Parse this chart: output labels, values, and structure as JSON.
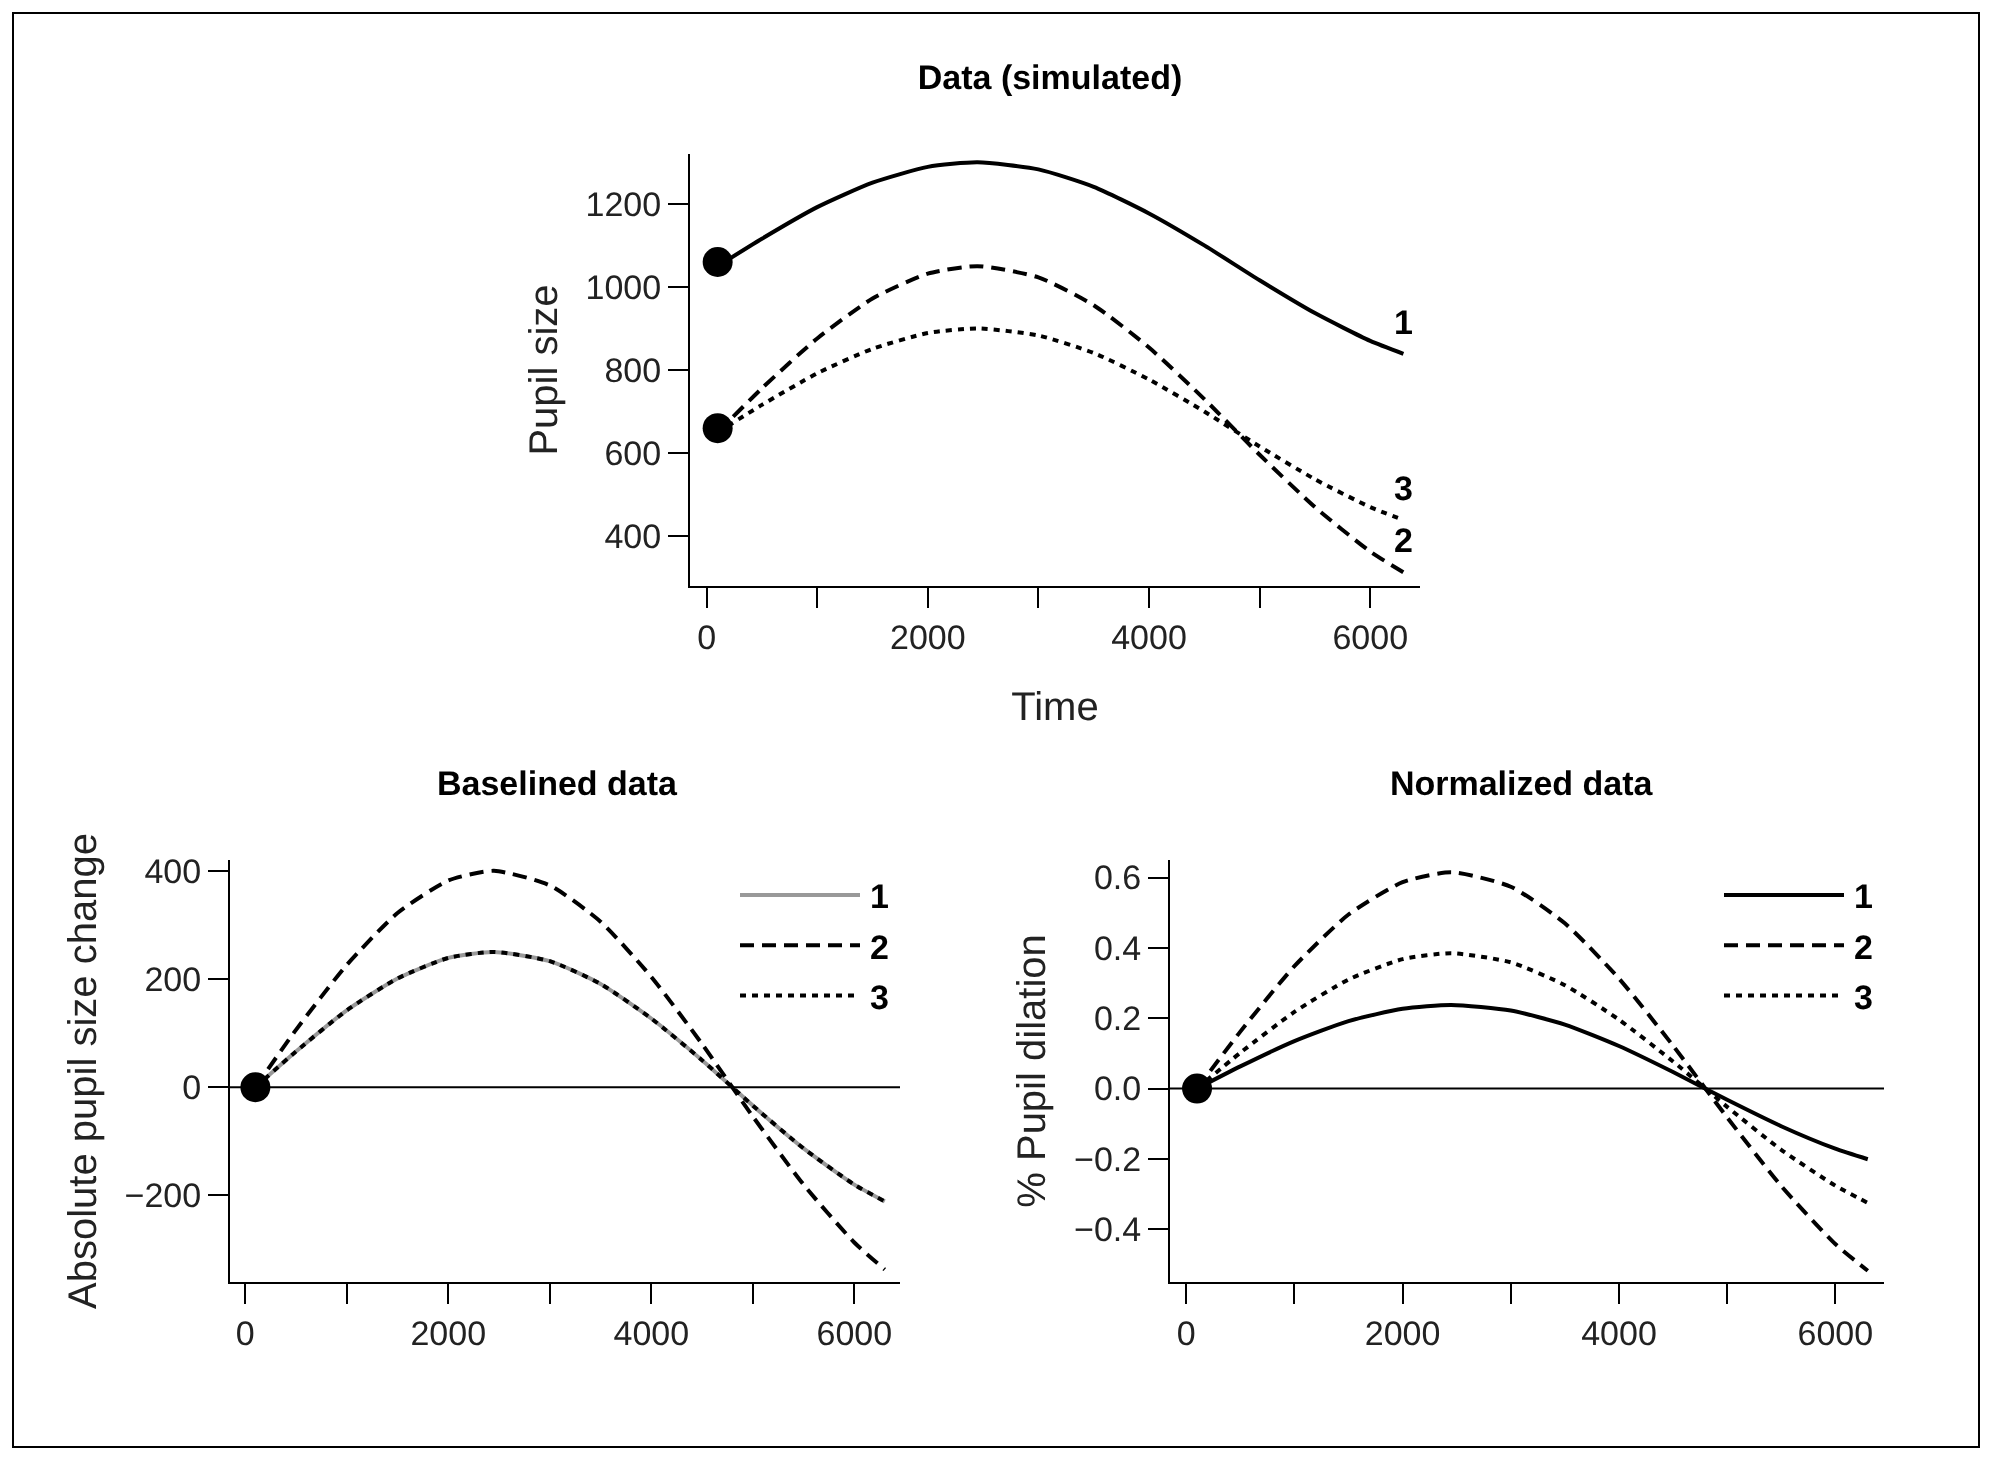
{
  "chart_data": [
    {
      "type": "line",
      "title": "Data (simulated)",
      "xlabel": "Time",
      "ylabel": "Pupil size",
      "x": [
        100,
        500,
        1000,
        1500,
        2000,
        2450,
        3000,
        3500,
        4000,
        4500,
        5000,
        5500,
        6000,
        6300
      ],
      "xlim": [
        -150,
        6450
      ],
      "ylim": [
        280,
        1320
      ],
      "xticks": [
        0,
        {
          "value": 1000,
          "label": null
        },
        2000,
        {
          "value": 3000,
          "label": null
        },
        4000,
        {
          "value": 5000,
          "label": null
        },
        6000
      ],
      "yticks": [
        400,
        600,
        800,
        1000,
        1200
      ],
      "grid": false,
      "legend": false,
      "series": [
        {
          "name": "1",
          "color": "#000000",
          "line_style": "solid",
          "values": [
            1050,
            1116,
            1192,
            1251,
            1289,
            1300,
            1283,
            1241,
            1177,
            1100,
            1016,
            937,
            870,
            839
          ]
        },
        {
          "name": "2",
          "color": "#000000",
          "line_style": "dashed",
          "values": [
            650,
            756,
            876,
            972,
            1032,
            1050,
            1023,
            956,
            854,
            730,
            596,
            470,
            363,
            313
          ]
        },
        {
          "name": "3",
          "color": "#000000",
          "line_style": "dotted",
          "values": [
            650,
            716,
            792,
            851,
            889,
            900,
            883,
            841,
            777,
            700,
            616,
            537,
            470,
            439
          ]
        },
        {
          "type": "scatter",
          "color": "#000000",
          "marker": "circle",
          "values": [
            1060,
            null,
            null,
            null,
            null,
            null,
            null,
            null,
            null,
            null,
            null,
            null,
            null,
            null
          ]
        },
        {
          "type": "scatter",
          "color": "#000000",
          "marker": "circle",
          "values": [
            660,
            null,
            null,
            null,
            null,
            null,
            null,
            null,
            null,
            null,
            null,
            null,
            null,
            null
          ]
        }
      ]
    },
    {
      "type": "line",
      "title": "Baselined data",
      "ylabel": "Absolute pupil size change",
      "x": [
        100,
        500,
        1000,
        1500,
        2000,
        2450,
        3000,
        3500,
        4000,
        4500,
        5000,
        5500,
        6000,
        6300
      ],
      "xlim": [
        -150,
        6450
      ],
      "ylim": [
        -360,
        420
      ],
      "xticks": [
        0,
        {
          "value": 1000,
          "label": null
        },
        2000,
        {
          "value": 3000,
          "label": null
        },
        4000,
        {
          "value": 5000,
          "label": null
        },
        6000
      ],
      "yticks": [
        {
          "value": -200,
          "label": "−200"
        },
        0,
        200,
        400
      ],
      "grid": false,
      "legend": "top right",
      "ref_lines": [
        {
          "axis": "y",
          "value": 0,
          "color": "#000000"
        }
      ],
      "series": [
        {
          "name": "1",
          "color": "#999999",
          "line_style": "solid",
          "values": [
            0,
            66,
            142,
            201,
            239,
            250,
            233,
            191,
            127,
            50,
            -34,
            -113,
            -180,
            -211
          ]
        },
        {
          "name": "2",
          "color": "#000000",
          "line_style": "dashed",
          "values": [
            0,
            106,
            226,
            322,
            382,
            400,
            373,
            306,
            204,
            80,
            -54,
            -180,
            -287,
            -337
          ]
        },
        {
          "name": "3",
          "color": "#000000",
          "line_style": "dotted",
          "values": [
            0,
            66,
            142,
            201,
            239,
            250,
            233,
            191,
            127,
            50,
            -34,
            -113,
            -180,
            -211
          ]
        },
        {
          "type": "scatter",
          "color": "#000000",
          "marker": "circle",
          "values": [
            0,
            null,
            null,
            null,
            null,
            null,
            null,
            null,
            null,
            null,
            null,
            null,
            null,
            null
          ]
        }
      ]
    },
    {
      "type": "line",
      "title": "Normalized data",
      "ylabel": "% Pupil dilation",
      "x": [
        100,
        500,
        1000,
        1500,
        2000,
        2450,
        3000,
        3500,
        4000,
        4500,
        5000,
        5500,
        6000,
        6300
      ],
      "xlim": [
        -150,
        6450
      ],
      "ylim": [
        -0.55,
        0.65
      ],
      "xticks": [
        0,
        {
          "value": 1000,
          "label": null
        },
        2000,
        {
          "value": 3000,
          "label": null
        },
        4000,
        {
          "value": 5000,
          "label": null
        },
        6000
      ],
      "yticks": [
        {
          "value": -0.4,
          "label": "−0.4"
        },
        {
          "value": -0.2,
          "label": "−0.2"
        },
        {
          "value": 0,
          "label": "0.0"
        },
        0.2,
        0.4,
        0.6
      ],
      "grid": false,
      "legend": "top right",
      "ref_lines": [
        {
          "axis": "y",
          "value": 0,
          "color": "#000000"
        }
      ],
      "series": [
        {
          "name": "1",
          "color": "#000000",
          "line_style": "solid",
          "values": [
            0,
            0.063,
            0.135,
            0.192,
            0.227,
            0.238,
            0.222,
            0.182,
            0.121,
            0.047,
            -0.032,
            -0.107,
            -0.171,
            -0.201
          ]
        },
        {
          "name": "2",
          "color": "#000000",
          "line_style": "dashed",
          "values": [
            0,
            0.162,
            0.348,
            0.495,
            0.587,
            0.615,
            0.574,
            0.47,
            0.313,
            0.122,
            -0.082,
            -0.277,
            -0.442,
            -0.518
          ]
        },
        {
          "name": "3",
          "color": "#000000",
          "line_style": "dotted",
          "values": [
            0,
            0.102,
            0.218,
            0.31,
            0.368,
            0.385,
            0.359,
            0.294,
            0.196,
            0.077,
            -0.052,
            -0.174,
            -0.276,
            -0.325
          ]
        },
        {
          "type": "scatter",
          "color": "#000000",
          "marker": "circle",
          "values": [
            0,
            null,
            null,
            null,
            null,
            null,
            null,
            null,
            null,
            null,
            null,
            null,
            null,
            null
          ]
        }
      ]
    }
  ]
}
